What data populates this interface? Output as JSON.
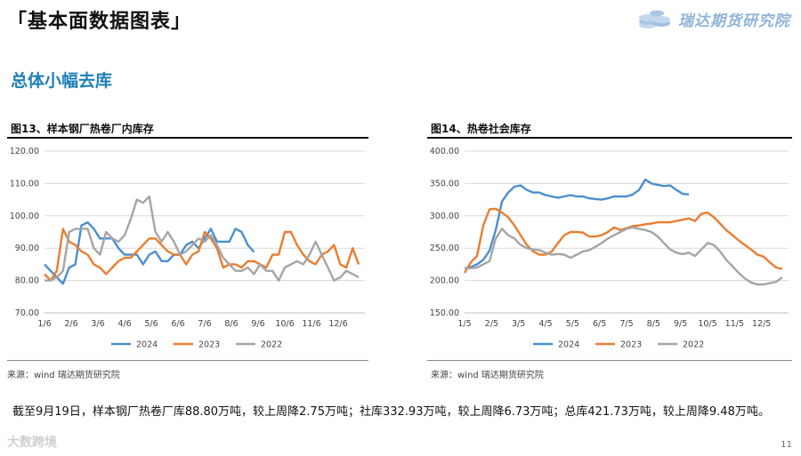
{
  "header": {
    "title": "「基本面数据图表」",
    "logo_text": "瑞达期货研究院"
  },
  "section_title": "总体小幅去库",
  "chart13": {
    "title": "图13、样本钢厂热卷厂内库存",
    "source": "来源：wind   瑞达期货研究院"
  },
  "chart14": {
    "title": "图14、热卷社会库存",
    "source": "来源：wind   瑞达期货研究院"
  },
  "summary": "截至9月19日，样本钢厂热卷厂库88.80万吨，较上周降2.75万吨；社库332.93万吨，较上周降6.73万吨；总库421.73万吨，较上周降9.48万吨。",
  "watermark": "大数跨境",
  "page_number": "11",
  "colors": {
    "2024": "#4a8fd0",
    "2023": "#ea7d30",
    "2022": "#a5a5a5"
  },
  "chart_data": [
    {
      "type": "line",
      "title": "图13、样本钢厂热卷厂内库存",
      "x_tick_labels": [
        "1/6",
        "2/6",
        "3/6",
        "4/6",
        "5/6",
        "6/6",
        "7/6",
        "8/6",
        "9/6",
        "10/6",
        "11/6",
        "12/6"
      ],
      "y_tick_labels": [
        "70.00",
        "80.00",
        "90.00",
        "100.00",
        "110.00",
        "120.00"
      ],
      "ylim": [
        70,
        120
      ],
      "xlim": [
        0,
        52
      ],
      "grid": true,
      "legend_position": "bottom",
      "series": [
        {
          "name": "2024",
          "color": "#4a8fd0",
          "x": [
            0,
            1,
            2,
            3,
            4,
            5,
            6,
            7,
            8,
            9,
            10,
            11,
            12,
            13,
            14,
            15,
            16,
            17,
            18,
            19,
            20,
            21,
            22,
            23,
            24,
            25,
            26,
            27,
            28,
            29,
            30,
            31,
            32,
            33,
            34,
            35,
            36
          ],
          "y": [
            85,
            83,
            81,
            79,
            84,
            85,
            97,
            98,
            96,
            93,
            93,
            93,
            90,
            88,
            88,
            88,
            85,
            88,
            89,
            86,
            86,
            88,
            88,
            91,
            92,
            90,
            93,
            96,
            92,
            92,
            92,
            96,
            95,
            91,
            88.8,
            null,
            null
          ]
        },
        {
          "name": "2023",
          "color": "#ea7d30",
          "x": [
            0,
            1,
            2,
            3,
            4,
            5,
            6,
            7,
            8,
            9,
            10,
            11,
            12,
            13,
            14,
            15,
            16,
            17,
            18,
            19,
            20,
            21,
            22,
            23,
            24,
            25,
            26,
            27,
            28,
            29,
            30,
            31,
            32,
            33,
            34,
            35,
            36,
            37,
            38,
            39,
            40,
            41,
            42,
            43,
            44,
            45,
            46,
            47,
            48,
            49,
            50,
            51
          ],
          "y": [
            82,
            80,
            83,
            96,
            92,
            91,
            89,
            88,
            85,
            84,
            82,
            84,
            86,
            87,
            87,
            89,
            91,
            93,
            93,
            91,
            89,
            88,
            88,
            85,
            88,
            89,
            95,
            93,
            90,
            84,
            85,
            85,
            84,
            86,
            86,
            85,
            84,
            88,
            88,
            95,
            95,
            91,
            88,
            86,
            85,
            88,
            89,
            91,
            85,
            84,
            90,
            85
          ]
        },
        {
          "name": "2022",
          "color": "#a5a5a5",
          "x": [
            0,
            1,
            2,
            3,
            4,
            5,
            6,
            7,
            8,
            9,
            10,
            11,
            12,
            13,
            14,
            15,
            16,
            17,
            18,
            19,
            20,
            21,
            22,
            23,
            24,
            25,
            26,
            27,
            28,
            29,
            30,
            31,
            32,
            33,
            34,
            35,
            36,
            37,
            38,
            39,
            40,
            41,
            42,
            43,
            44,
            45,
            46,
            47,
            48,
            49,
            50,
            51
          ],
          "y": [
            80,
            80,
            81,
            83,
            95,
            96,
            96,
            96,
            90,
            88,
            95,
            93,
            92,
            94,
            99,
            105,
            104,
            106,
            95,
            92,
            95,
            92,
            88,
            89,
            91,
            93,
            92,
            94,
            91,
            87,
            85,
            83,
            83,
            84,
            82,
            85,
            83,
            83,
            80,
            84,
            85,
            86,
            85,
            88,
            92,
            88,
            84,
            80,
            81,
            83,
            82,
            81
          ]
        }
      ]
    },
    {
      "type": "line",
      "title": "图14、热卷社会库存",
      "x_tick_labels": [
        "1/5",
        "2/5",
        "3/5",
        "4/5",
        "5/5",
        "6/5",
        "7/5",
        "8/5",
        "9/5",
        "10/5",
        "11/5",
        "12/5"
      ],
      "y_tick_labels": [
        "150.00",
        "200.00",
        "250.00",
        "300.00",
        "350.00",
        "400.00"
      ],
      "ylim": [
        150,
        400
      ],
      "xlim": [
        0,
        52
      ],
      "grid": true,
      "legend_position": "bottom",
      "series": [
        {
          "name": "2024",
          "color": "#4a8fd0",
          "x": [
            0,
            1,
            2,
            3,
            4,
            5,
            6,
            7,
            8,
            9,
            10,
            11,
            12,
            13,
            14,
            15,
            16,
            17,
            18,
            19,
            20,
            21,
            22,
            23,
            24,
            25,
            26,
            27,
            28,
            29,
            30,
            31,
            32,
            33,
            34,
            35,
            36,
            37
          ],
          "y": [
            219,
            221,
            225,
            232,
            246,
            278,
            322,
            336,
            345,
            347,
            340,
            336,
            336,
            332,
            330,
            328,
            330,
            332,
            330,
            330,
            327,
            326,
            325,
            327,
            330,
            330,
            330,
            333,
            340,
            356,
            350,
            348,
            346,
            347,
            340,
            334,
            333,
            null
          ]
        },
        {
          "name": "2023",
          "color": "#ea7d30",
          "x": [
            0,
            1,
            2,
            3,
            4,
            5,
            6,
            7,
            8,
            9,
            10,
            11,
            12,
            13,
            14,
            15,
            16,
            17,
            18,
            19,
            20,
            21,
            22,
            23,
            24,
            25,
            26,
            27,
            28,
            29,
            30,
            31,
            32,
            33,
            34,
            35,
            36,
            37,
            38,
            39,
            40,
            41,
            42,
            43,
            44,
            45,
            46,
            47,
            48,
            49,
            50,
            51
          ],
          "y": [
            212,
            228,
            238,
            285,
            310,
            311,
            305,
            298,
            285,
            270,
            255,
            245,
            240,
            240,
            245,
            258,
            270,
            275,
            275,
            274,
            268,
            268,
            270,
            275,
            282,
            278,
            281,
            284,
            285,
            287,
            288,
            290,
            290,
            290,
            292,
            294,
            296,
            292,
            303,
            305,
            298,
            288,
            278,
            270,
            262,
            255,
            248,
            240,
            237,
            228,
            220,
            218
          ]
        },
        {
          "name": "2022",
          "color": "#a5a5a5",
          "x": [
            0,
            1,
            2,
            3,
            4,
            5,
            6,
            7,
            8,
            9,
            10,
            11,
            12,
            13,
            14,
            15,
            16,
            17,
            18,
            19,
            20,
            21,
            22,
            23,
            24,
            25,
            26,
            27,
            28,
            29,
            30,
            31,
            32,
            33,
            34,
            35,
            36,
            37,
            38,
            39,
            40,
            41,
            42,
            43,
            44,
            45,
            46,
            47,
            48,
            49,
            50,
            51
          ],
          "y": [
            219,
            219,
            220,
            225,
            230,
            265,
            280,
            270,
            265,
            255,
            250,
            248,
            247,
            243,
            240,
            241,
            240,
            235,
            240,
            245,
            247,
            252,
            258,
            265,
            270,
            275,
            280,
            282,
            280,
            278,
            275,
            268,
            258,
            248,
            243,
            241,
            243,
            238,
            248,
            258,
            255,
            245,
            232,
            222,
            212,
            203,
            197,
            194,
            194,
            196,
            198,
            205
          ]
        }
      ]
    }
  ]
}
